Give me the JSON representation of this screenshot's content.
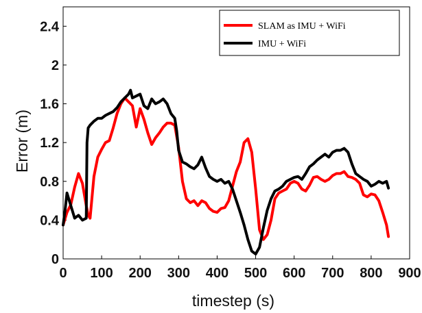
{
  "chart_data": {
    "type": "line",
    "title": "",
    "xlabel": "timestep (s)",
    "ylabel": "Error (m)",
    "xlim": [
      0,
      900
    ],
    "ylim": [
      0,
      2.6
    ],
    "xticks": [
      0,
      100,
      200,
      300,
      400,
      500,
      600,
      700,
      800,
      900
    ],
    "xtick_labels": [
      "0",
      "100",
      "200",
      "300",
      "400",
      "500",
      "600",
      "700",
      "800",
      "900"
    ],
    "yticks": [
      0,
      0.4,
      0.8,
      1.2,
      1.6,
      2,
      2.4
    ],
    "ytick_labels": [
      "0",
      "0.4",
      "0.8",
      "1.2",
      "1.6",
      "2",
      "2.4"
    ],
    "grid": false,
    "legend_position": "top-right",
    "series": [
      {
        "name": "SLAM as IMU + WiFi",
        "color": "#ff0000",
        "x": [
          0,
          10,
          20,
          30,
          40,
          50,
          60,
          65,
          70,
          80,
          90,
          100,
          110,
          120,
          130,
          140,
          150,
          160,
          170,
          180,
          190,
          200,
          210,
          220,
          230,
          240,
          250,
          260,
          270,
          280,
          290,
          300,
          310,
          320,
          330,
          340,
          350,
          360,
          370,
          380,
          390,
          400,
          410,
          420,
          430,
          440,
          450,
          460,
          470,
          480,
          490,
          500,
          510,
          520,
          530,
          540,
          550,
          560,
          570,
          580,
          590,
          600,
          610,
          620,
          630,
          640,
          650,
          660,
          670,
          680,
          690,
          700,
          710,
          720,
          730,
          740,
          750,
          760,
          770,
          780,
          790,
          800,
          810,
          820,
          830,
          840,
          845
        ],
        "y": [
          0.35,
          0.48,
          0.56,
          0.74,
          0.88,
          0.78,
          0.55,
          0.45,
          0.42,
          0.85,
          1.05,
          1.13,
          1.2,
          1.22,
          1.35,
          1.5,
          1.6,
          1.66,
          1.62,
          1.58,
          1.36,
          1.55,
          1.44,
          1.3,
          1.18,
          1.25,
          1.3,
          1.36,
          1.4,
          1.4,
          1.38,
          1.15,
          0.8,
          0.62,
          0.58,
          0.6,
          0.55,
          0.6,
          0.58,
          0.52,
          0.49,
          0.48,
          0.52,
          0.53,
          0.6,
          0.75,
          0.9,
          1.0,
          1.2,
          1.24,
          1.1,
          0.72,
          0.3,
          0.2,
          0.25,
          0.4,
          0.62,
          0.68,
          0.7,
          0.72,
          0.78,
          0.8,
          0.78,
          0.72,
          0.7,
          0.76,
          0.84,
          0.85,
          0.82,
          0.8,
          0.82,
          0.86,
          0.88,
          0.88,
          0.9,
          0.85,
          0.84,
          0.82,
          0.78,
          0.66,
          0.64,
          0.67,
          0.66,
          0.6,
          0.48,
          0.35,
          0.23
        ]
      },
      {
        "name": "IMU + WiFi",
        "color": "#000000",
        "x": [
          0,
          5,
          10,
          20,
          30,
          40,
          50,
          60,
          62,
          65,
          70,
          80,
          90,
          100,
          110,
          120,
          130,
          140,
          150,
          160,
          170,
          175,
          180,
          190,
          200,
          210,
          220,
          230,
          240,
          250,
          260,
          270,
          280,
          290,
          295,
          300,
          310,
          320,
          330,
          340,
          350,
          360,
          370,
          380,
          390,
          400,
          410,
          420,
          430,
          440,
          450,
          460,
          470,
          480,
          490,
          500,
          510,
          520,
          530,
          540,
          550,
          560,
          570,
          580,
          590,
          600,
          610,
          620,
          630,
          640,
          650,
          660,
          670,
          680,
          690,
          700,
          710,
          720,
          730,
          740,
          750,
          760,
          770,
          780,
          790,
          800,
          810,
          820,
          830,
          840,
          845
        ],
        "y": [
          0.35,
          0.5,
          0.68,
          0.55,
          0.42,
          0.45,
          0.4,
          0.42,
          1.2,
          1.35,
          1.38,
          1.42,
          1.45,
          1.45,
          1.48,
          1.5,
          1.52,
          1.56,
          1.62,
          1.66,
          1.7,
          1.74,
          1.66,
          1.68,
          1.7,
          1.58,
          1.55,
          1.65,
          1.6,
          1.62,
          1.65,
          1.6,
          1.5,
          1.45,
          1.32,
          1.12,
          1.0,
          0.98,
          0.95,
          0.93,
          0.97,
          1.05,
          0.94,
          0.85,
          0.82,
          0.8,
          0.82,
          0.78,
          0.8,
          0.72,
          0.6,
          0.48,
          0.35,
          0.2,
          0.08,
          0.05,
          0.12,
          0.32,
          0.5,
          0.62,
          0.7,
          0.72,
          0.75,
          0.8,
          0.82,
          0.84,
          0.85,
          0.82,
          0.88,
          0.95,
          0.98,
          1.02,
          1.05,
          1.08,
          1.05,
          1.1,
          1.12,
          1.12,
          1.14,
          1.1,
          0.98,
          0.88,
          0.85,
          0.82,
          0.8,
          0.75,
          0.77,
          0.8,
          0.78,
          0.8,
          0.73
        ]
      }
    ]
  }
}
